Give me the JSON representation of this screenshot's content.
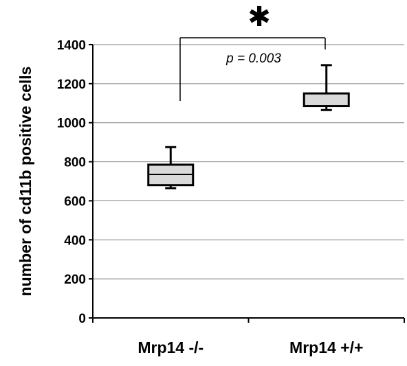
{
  "chart_data": {
    "type": "boxplot",
    "title": "",
    "ylabel": "number of cd11b positive cells",
    "xlabel": "",
    "ylim": [
      0,
      1400
    ],
    "yticks": [
      0,
      200,
      400,
      600,
      800,
      1000,
      1200,
      1400
    ],
    "grid": true,
    "categories": [
      "Mrp14 -/-",
      "Mrp14 +/+"
    ],
    "boxes": [
      {
        "category": "Mrp14 -/-",
        "min": 665,
        "q1": 680,
        "median": 735,
        "q3": 785,
        "max": 875
      },
      {
        "category": "Mrp14 +/+",
        "min": 1065,
        "q1": 1085,
        "median": 1085,
        "q3": 1150,
        "max": 1295
      }
    ],
    "annotation": {
      "significance_marker": "✱",
      "p_value_text": "p = 0.003"
    },
    "colors": {
      "box_fill": "#d9d9d9",
      "line": "#000000",
      "grid": "#808080"
    }
  }
}
